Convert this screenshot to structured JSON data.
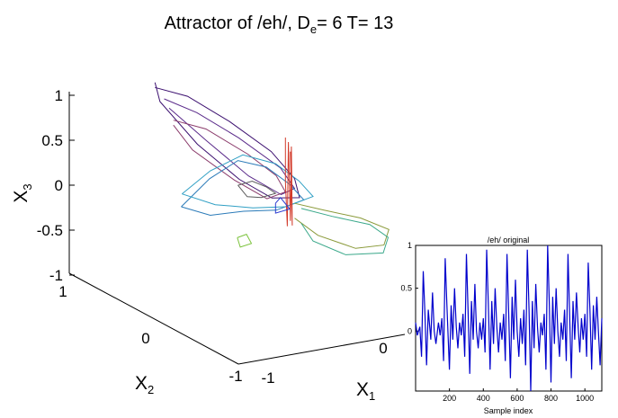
{
  "chart_data": [
    {
      "type": "line",
      "title": {
        "prefix": "Attractor of /eh/, D",
        "subscript": "e",
        "suffix": "= 6 T= 13"
      },
      "x1label": {
        "base": "X",
        "sub": "1"
      },
      "x2label": {
        "base": "X",
        "sub": "2"
      },
      "x3label": {
        "base": "X",
        "sub": "3"
      },
      "x1ticks": [
        "-1",
        "0"
      ],
      "x2ticks": [
        "1",
        "0",
        "-1"
      ],
      "x3ticks": [
        "1",
        "0.5",
        "0",
        "-0.5",
        "-1"
      ],
      "grid": false,
      "series": [
        {
          "color": "#3b0f6f",
          "points": [
            [
              -0.55,
              0.55,
              0.9
            ],
            [
              -0.35,
              0.4,
              0.85
            ],
            [
              -0.1,
              0.2,
              0.65
            ],
            [
              0.15,
              0.0,
              0.4
            ],
            [
              0.3,
              -0.1,
              0.15
            ],
            [
              0.35,
              -0.1,
              -0.05
            ],
            [
              0.2,
              0.05,
              -0.1
            ],
            [
              0.0,
              0.2,
              0.05
            ],
            [
              -0.25,
              0.4,
              0.35
            ],
            [
              -0.5,
              0.55,
              0.75
            ],
            [
              -0.55,
              0.55,
              0.95
            ]
          ]
        },
        {
          "color": "#5a2a8a",
          "points": [
            [
              -0.5,
              0.5,
              0.8
            ],
            [
              -0.3,
              0.35,
              0.7
            ],
            [
              -0.05,
              0.15,
              0.5
            ],
            [
              0.2,
              -0.05,
              0.25
            ],
            [
              0.3,
              -0.1,
              0.05
            ],
            [
              0.25,
              0.0,
              -0.05
            ],
            [
              0.05,
              0.15,
              0.1
            ],
            [
              -0.2,
              0.35,
              0.4
            ],
            [
              -0.45,
              0.5,
              0.7
            ]
          ]
        },
        {
          "color": "#8a3a6a",
          "points": [
            [
              -0.45,
              0.45,
              0.6
            ],
            [
              -0.25,
              0.3,
              0.55
            ],
            [
              0.0,
              0.1,
              0.35
            ],
            [
              0.2,
              0.0,
              0.15
            ],
            [
              0.25,
              -0.05,
              0.0
            ],
            [
              0.15,
              0.05,
              -0.1
            ],
            [
              -0.05,
              0.2,
              0.05
            ],
            [
              -0.3,
              0.4,
              0.3
            ],
            [
              -0.45,
              0.45,
              0.55
            ]
          ]
        },
        {
          "color": "#2a7ab8",
          "points": [
            [
              -0.5,
              0.3,
              -0.2
            ],
            [
              -0.3,
              0.2,
              0.1
            ],
            [
              -0.1,
              0.1,
              0.3
            ],
            [
              0.1,
              0.0,
              0.25
            ],
            [
              0.25,
              -0.1,
              0.1
            ],
            [
              0.35,
              -0.15,
              -0.05
            ],
            [
              0.2,
              0.0,
              -0.2
            ],
            [
              0.0,
              0.15,
              -0.25
            ],
            [
              -0.25,
              0.25,
              -0.3
            ],
            [
              -0.5,
              0.3,
              -0.2
            ]
          ]
        },
        {
          "color": "#2f9fc4",
          "points": [
            [
              -0.45,
              0.35,
              -0.1
            ],
            [
              -0.25,
              0.25,
              0.15
            ],
            [
              -0.05,
              0.1,
              0.35
            ],
            [
              0.15,
              -0.05,
              0.3
            ],
            [
              0.3,
              -0.15,
              0.15
            ],
            [
              0.4,
              -0.2,
              0.0
            ],
            [
              0.25,
              -0.05,
              -0.15
            ],
            [
              0.05,
              0.1,
              -0.2
            ],
            [
              -0.2,
              0.25,
              -0.2
            ],
            [
              -0.45,
              0.35,
              -0.1
            ]
          ]
        },
        {
          "color": "#5a5a5a",
          "points": [
            [
              -0.1,
              0.1,
              0.05
            ],
            [
              0.0,
              0.05,
              0.1
            ],
            [
              0.1,
              0.0,
              0.05
            ],
            [
              0.15,
              -0.05,
              0.0
            ],
            [
              0.05,
              0.0,
              -0.05
            ],
            [
              -0.05,
              0.05,
              -0.05
            ],
            [
              -0.1,
              0.1,
              0.05
            ]
          ]
        },
        {
          "color": "#d23a2a",
          "points": [
            [
              0.25,
              -0.05,
              0.55
            ],
            [
              0.25,
              -0.05,
              0.1
            ],
            [
              0.27,
              -0.05,
              -0.35
            ],
            [
              0.28,
              -0.05,
              0.5
            ],
            [
              0.3,
              -0.05,
              -0.3
            ],
            [
              0.31,
              -0.05,
              0.45
            ],
            [
              0.32,
              -0.05,
              -0.35
            ],
            [
              0.3,
              -0.05,
              0.4
            ]
          ]
        },
        {
          "color": "#8a9a3a",
          "points": [
            [
              0.3,
              -0.1,
              -0.1
            ],
            [
              0.5,
              -0.2,
              -0.15
            ],
            [
              0.75,
              -0.35,
              -0.2
            ],
            [
              0.95,
              -0.45,
              -0.3
            ],
            [
              0.9,
              -0.45,
              -0.45
            ],
            [
              0.7,
              -0.35,
              -0.5
            ],
            [
              0.45,
              -0.2,
              -0.4
            ],
            [
              0.3,
              -0.1,
              -0.25
            ]
          ]
        },
        {
          "color": "#3aa88a",
          "points": [
            [
              0.35,
              -0.12,
              -0.15
            ],
            [
              0.55,
              -0.25,
              -0.2
            ],
            [
              0.8,
              -0.4,
              -0.25
            ],
            [
              0.9,
              -0.5,
              -0.35
            ],
            [
              0.85,
              -0.5,
              -0.5
            ],
            [
              0.6,
              -0.35,
              -0.55
            ],
            [
              0.4,
              -0.2,
              -0.45
            ],
            [
              0.35,
              -0.12,
              -0.3
            ]
          ]
        },
        {
          "color": "#7ac23a",
          "points": [
            [
              -0.15,
              0.05,
              -0.45
            ],
            [
              -0.1,
              0.0,
              -0.4
            ],
            [
              -0.05,
              0.0,
              -0.5
            ],
            [
              -0.12,
              0.05,
              -0.55
            ],
            [
              -0.15,
              0.05,
              -0.45
            ]
          ]
        },
        {
          "color": "#2a3ad0",
          "points": [
            [
              0.15,
              -0.05,
              -0.1
            ],
            [
              0.2,
              -0.05,
              -0.05
            ],
            [
              0.25,
              -0.1,
              -0.15
            ],
            [
              0.15,
              -0.05,
              -0.2
            ],
            [
              0.15,
              -0.05,
              -0.1
            ]
          ]
        }
      ]
    },
    {
      "type": "line",
      "title": "/eh/ original",
      "xlabel": "Sample index",
      "xlim": [
        0,
        1100
      ],
      "ylim": [
        -0.7,
        1
      ],
      "xticks": [
        "200",
        "400",
        "600",
        "800",
        "1000"
      ],
      "yticks": [
        "1",
        "0.5",
        "0"
      ],
      "series": [
        {
          "color": "#0000cc",
          "x": [
            0,
            10,
            25,
            35,
            45,
            55,
            65,
            75,
            90,
            100,
            110,
            120,
            135,
            145,
            155,
            165,
            175,
            185,
            200,
            210,
            220,
            230,
            240,
            250,
            260,
            270,
            280,
            290,
            300,
            310,
            320,
            330,
            340,
            350,
            360,
            370,
            380,
            390,
            400,
            410,
            420,
            430,
            440,
            450,
            460,
            470,
            480,
            490,
            500,
            510,
            520,
            530,
            540,
            550,
            560,
            570,
            580,
            590,
            600,
            610,
            620,
            630,
            640,
            650,
            660,
            670,
            680,
            690,
            700,
            710,
            720,
            730,
            740,
            750,
            760,
            770,
            780,
            790,
            800,
            810,
            820,
            830,
            840,
            850,
            860,
            870,
            880,
            890,
            900,
            910,
            920,
            930,
            940,
            950,
            960,
            970,
            980,
            990,
            1000,
            1010,
            1020,
            1030,
            1040,
            1050,
            1060,
            1070,
            1080,
            1090,
            1100
          ],
          "y": [
            0.1,
            -0.05,
            0.05,
            -0.3,
            0.7,
            0.2,
            -0.4,
            0.25,
            -0.1,
            0.45,
            0.0,
            -0.15,
            0.1,
            -0.05,
            0.15,
            -0.35,
            0.85,
            0.3,
            -0.45,
            0.3,
            -0.1,
            0.5,
            0.05,
            -0.2,
            0.1,
            -0.05,
            0.2,
            -0.3,
            0.9,
            0.25,
            -0.5,
            0.35,
            -0.1,
            0.55,
            0.0,
            -0.2,
            0.1,
            -0.1,
            0.15,
            -0.25,
            0.95,
            0.3,
            -0.45,
            0.35,
            -0.15,
            0.5,
            0.05,
            -0.25,
            0.1,
            -0.1,
            0.2,
            -0.35,
            0.9,
            0.2,
            -0.55,
            0.4,
            -0.1,
            0.6,
            0.0,
            -0.3,
            0.15,
            -0.15,
            0.25,
            -0.4,
            0.95,
            0.25,
            -0.7,
            0.35,
            -0.2,
            0.55,
            0.05,
            -0.25,
            0.1,
            -0.05,
            0.2,
            -0.45,
            1.0,
            0.3,
            -0.6,
            0.4,
            -0.15,
            0.5,
            0.0,
            -0.3,
            0.1,
            -0.1,
            0.25,
            -0.35,
            0.9,
            0.2,
            -0.55,
            0.35,
            -0.1,
            0.45,
            0.05,
            -0.25,
            0.15,
            -0.1,
            0.2,
            -0.3,
            0.8,
            0.25,
            -0.45,
            0.3,
            -0.1,
            0.4,
            0.0,
            -0.4,
            0.15
          ]
        }
      ]
    }
  ]
}
